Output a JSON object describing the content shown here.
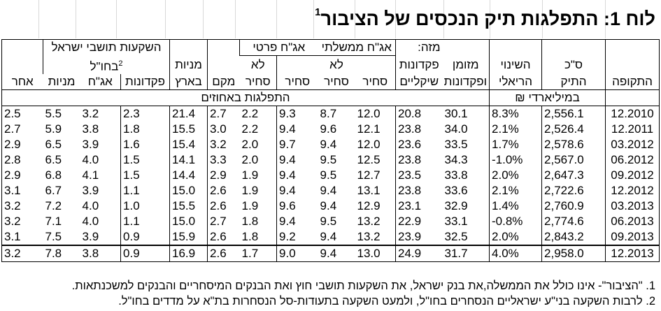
{
  "title": {
    "text": "לוח 1: התפלגות תיק הנכסים של הציבור",
    "sup": "1"
  },
  "headers": {
    "period": "התקופה",
    "total": [
      "ס\"כ",
      "התיק"
    ],
    "real_change": [
      "השינוי",
      "הריאלי"
    ],
    "cash_deposits": [
      "מזומן",
      "ופקדונות"
    ],
    "shekel_deposits": [
      "מזה:",
      "פקדונות",
      "שיקליים"
    ],
    "gov_bonds": "אג\"ח ממשלתי",
    "not_traded": "לא",
    "traded": "סחיר",
    "corp_bonds": "אג\"ח פרטי",
    "mkam": "מקם",
    "domestic_shares": [
      "מניות",
      "בארץ"
    ],
    "israeli_abroad": "השקעות תושבי ישראל",
    "abroad": "בחו\"ל",
    "abroad_sup": "2",
    "deposits": "פקדונות",
    "bonds": "אג\"ח",
    "shares": "מניות",
    "other": "אחר",
    "unit_billions": "במיליארדי ₪",
    "unit_percent": "התפלגות באחוזים"
  },
  "rows": [
    {
      "period": "12.2010",
      "total": "2,556.1",
      "change": "8.3%",
      "cash": "30.1",
      "shekel": "20.8",
      "gov_traded": "12.0",
      "gov_not": "8.7",
      "corp_traded": "9.3",
      "corp_not": "2.2",
      "mkam": "2.7",
      "dom_shares": "21.4",
      "ab_dep": "2.3",
      "ab_bonds": "3.2",
      "ab_shares": "5.5",
      "other": "2.5"
    },
    {
      "period": "12.2011",
      "total": "2,526.4",
      "change": "2.1%",
      "cash": "34.0",
      "shekel": "23.8",
      "gov_traded": "12.1",
      "gov_not": "9.6",
      "corp_traded": "9.4",
      "corp_not": "2.2",
      "mkam": "3.0",
      "dom_shares": "15.5",
      "ab_dep": "1.8",
      "ab_bonds": "3.8",
      "ab_shares": "5.9",
      "other": "2.7"
    },
    {
      "period": "03.2012",
      "total": "2,578.6",
      "change": "1.7%",
      "cash": "33.5",
      "shekel": "23.6",
      "gov_traded": "12.0",
      "gov_not": "9.4",
      "corp_traded": "9.7",
      "corp_not": "2.0",
      "mkam": "3.2",
      "dom_shares": "15.4",
      "ab_dep": "1.6",
      "ab_bonds": "3.9",
      "ab_shares": "6.5",
      "other": "2.9"
    },
    {
      "period": "06.2012",
      "total": "2,567.0",
      "change": "-1.0%",
      "cash": "34.3",
      "shekel": "23.8",
      "gov_traded": "12.5",
      "gov_not": "9.5",
      "corp_traded": "9.4",
      "corp_not": "2.0",
      "mkam": "3.3",
      "dom_shares": "14.1",
      "ab_dep": "1.5",
      "ab_bonds": "4.0",
      "ab_shares": "6.5",
      "other": "2.8"
    },
    {
      "period": "09.2012",
      "total": "2,647.3",
      "change": "2.0%",
      "cash": "33.8",
      "shekel": "23.5",
      "gov_traded": "12.7",
      "gov_not": "9.5",
      "corp_traded": "9.4",
      "corp_not": "1.9",
      "mkam": "2.9",
      "dom_shares": "14.4",
      "ab_dep": "1.5",
      "ab_bonds": "4.1",
      "ab_shares": "6.8",
      "other": "2.9"
    },
    {
      "period": "12.2012",
      "total": "2,722.6",
      "change": "2.1%",
      "cash": "33.6",
      "shekel": "23.8",
      "gov_traded": "13.1",
      "gov_not": "9.4",
      "corp_traded": "9.4",
      "corp_not": "1.9",
      "mkam": "2.6",
      "dom_shares": "15.0",
      "ab_dep": "1.1",
      "ab_bonds": "3.9",
      "ab_shares": "6.7",
      "other": "3.1"
    },
    {
      "period": "03.2013",
      "total": "2,760.9",
      "change": "1.4%",
      "cash": "32.9",
      "shekel": "23.1",
      "gov_traded": "12.9",
      "gov_not": "9.4",
      "corp_traded": "9.6",
      "corp_not": "1.9",
      "mkam": "2.6",
      "dom_shares": "15.5",
      "ab_dep": "1.0",
      "ab_bonds": "4.0",
      "ab_shares": "7.2",
      "other": "3.2"
    },
    {
      "period": "06.2013",
      "total": "2,774.6",
      "change": "-0.8%",
      "cash": "33.1",
      "shekel": "22.9",
      "gov_traded": "13.2",
      "gov_not": "9.5",
      "corp_traded": "9.4",
      "corp_not": "1.8",
      "mkam": "2.7",
      "dom_shares": "15.0",
      "ab_dep": "1.1",
      "ab_bonds": "4.0",
      "ab_shares": "7.1",
      "other": "3.2"
    },
    {
      "period": "09.2013",
      "total": "2,843.2",
      "change": "2.0%",
      "cash": "32.5",
      "shekel": "23.9",
      "gov_traded": "13.2",
      "gov_not": "9.4",
      "corp_traded": "9.2",
      "corp_not": "1.8",
      "mkam": "2.6",
      "dom_shares": "15.9",
      "ab_dep": "0.9",
      "ab_bonds": "3.9",
      "ab_shares": "7.5",
      "other": "3.1"
    },
    {
      "period": "12.2013",
      "total": "2,958.0",
      "change": "4.0%",
      "cash": "31.7",
      "shekel": "24.9",
      "gov_traded": "13.0",
      "gov_not": "9.4",
      "corp_traded": "9.0",
      "corp_not": "1.7",
      "mkam": "2.6",
      "dom_shares": "16.9",
      "ab_dep": "0.9",
      "ab_bonds": "3.8",
      "ab_shares": "7.8",
      "other": "3.2"
    }
  ],
  "notes": [
    "1. \"הציבור\"- אינו כולל את הממשלה,את בנק ישראל, את השקעות תושבי חוץ ואת הבנקים המיסחריים והבנקים למשכנתאות.",
    "2. לרבות השקעה בני\"ע ישראליים הנסחרים בחו\"ל, ולמעט השקעה בתעודות-סל הנסחרות בת\"א על מדדים בחו\"ל."
  ]
}
